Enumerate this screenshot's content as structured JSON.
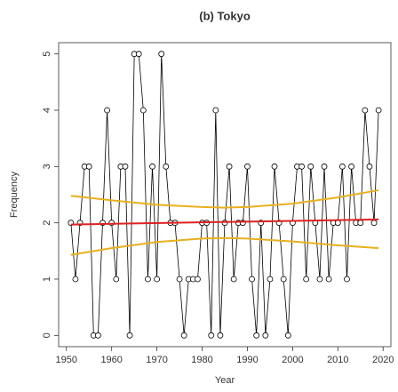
{
  "chart_data": {
    "type": "line",
    "title": "(b) Tokyo",
    "x_label": "Year",
    "y_label": "Frequency",
    "xlim": [
      1948.28,
      2021.72
    ],
    "ylim": [
      -0.2,
      5.2
    ],
    "xticks": [
      1950,
      1960,
      1970,
      1980,
      1990,
      2000,
      2010,
      2020
    ],
    "yticks": [
      0,
      1,
      2,
      3,
      4,
      5
    ],
    "series": [
      {
        "color": "#000000",
        "markers": true,
        "width": 0.8,
        "x": [
          1951,
          1952,
          1953,
          1954,
          1955,
          1956,
          1957,
          1958,
          1959,
          1960,
          1961,
          1962,
          1963,
          1964,
          1965,
          1966,
          1967,
          1968,
          1969,
          1970,
          1971,
          1972,
          1973,
          1974,
          1975,
          1976,
          1977,
          1978,
          1979,
          1980,
          1981,
          1982,
          1983,
          1984,
          1985,
          1986,
          1987,
          1988,
          1989,
          1990,
          1991,
          1992,
          1993,
          1994,
          1995,
          1996,
          1997,
          1998,
          1999,
          2000,
          2001,
          2002,
          2003,
          2004,
          2005,
          2006,
          2007,
          2008,
          2009,
          2010,
          2011,
          2012,
          2013,
          2014,
          2015,
          2016,
          2017,
          2018,
          2019
        ],
        "values": [
          2,
          1,
          2,
          3,
          3,
          0,
          0,
          2,
          4,
          2,
          1,
          3,
          3,
          0,
          5,
          5,
          4,
          1,
          3,
          1,
          5,
          3,
          2,
          2,
          1,
          0,
          1,
          1,
          1,
          2,
          2,
          0,
          4,
          0,
          2,
          3,
          1,
          2,
          2,
          3,
          1,
          0,
          2,
          0,
          1,
          3,
          2,
          1,
          0,
          2,
          3,
          3,
          1,
          3,
          2,
          1,
          3,
          1,
          2,
          2,
          3,
          1,
          3,
          2,
          2,
          4,
          3,
          2,
          4
        ]
      },
      {
        "color": "#e8b020",
        "markers": false,
        "width": 2,
        "x": [
          1951,
          1960,
          1970,
          1980,
          1985,
          1990,
          2000,
          2010,
          2019
        ],
        "values": [
          2.48,
          2.4,
          2.32,
          2.28,
          2.27,
          2.28,
          2.34,
          2.45,
          2.58
        ]
      },
      {
        "color": "#e8b020",
        "markers": false,
        "width": 2,
        "x": [
          1951,
          1960,
          1970,
          1980,
          1985,
          1990,
          2000,
          2010,
          2019
        ],
        "values": [
          1.43,
          1.55,
          1.66,
          1.72,
          1.73,
          1.72,
          1.67,
          1.6,
          1.55
        ]
      },
      {
        "color": "#dd2222",
        "markers": false,
        "width": 2,
        "x": [
          1951,
          2019
        ],
        "values": [
          1.97,
          2.06
        ]
      }
    ]
  }
}
